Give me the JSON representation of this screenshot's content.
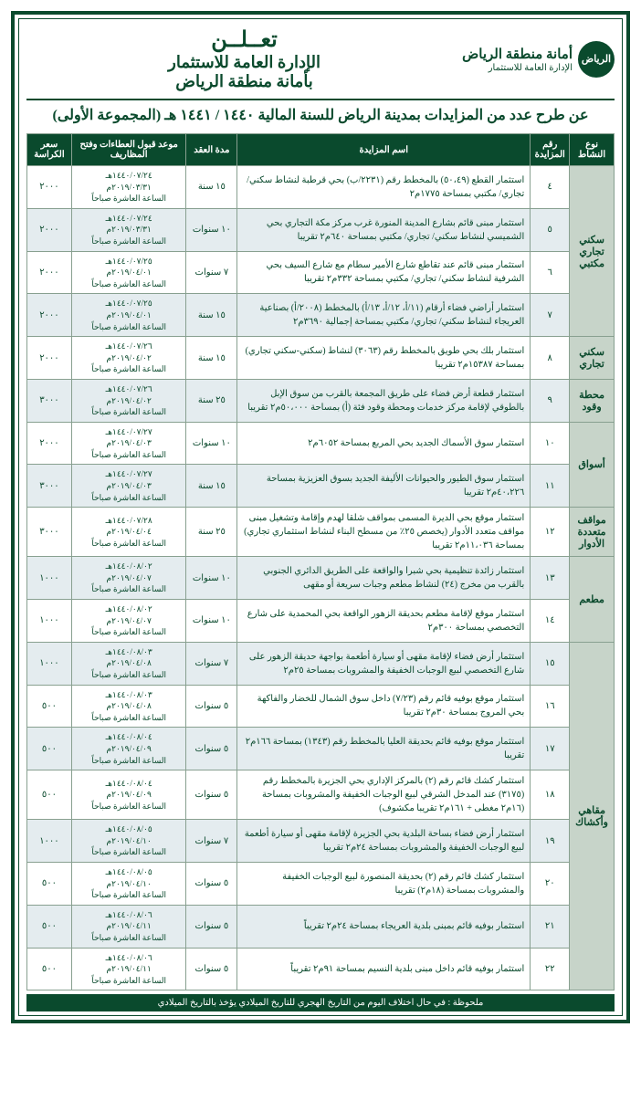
{
  "header": {
    "logo_mark": "الرياض",
    "logo_line1": "أمانة منطقة الرياض",
    "logo_line2": "الإدارة العامة للاستثمار",
    "title_line1": "تعــلــن",
    "title_line2": "الإدارة العامة للاستثمار",
    "title_line3": "بأمانة منطقة الرياض"
  },
  "subtitle": "عن طرح عدد من المزايدات بمدينة الرياض للسنة المالية ١٤٤٠ / ١٤٤١ هـ (المجموعة الأولى)",
  "columns": {
    "category": "نوع النشاط",
    "num": "رقم المزايدة",
    "name": "اسم المزايدة",
    "duration": "مدة العقد",
    "deadline": "موعد قبول العطاءات وفتح المظاريف",
    "price": "سعر الكراسة"
  },
  "categories": [
    {
      "label": "سكني تجاري مكتبي",
      "rows": [
        {
          "alt": false,
          "num": "٤",
          "desc": "استثمار القطع (٥٠،٤٩) بالمخطط رقم (٢٢٣١/ب) بحي قرطبة لنشاط سكني/ تجاري/ مكتبي بمساحة ١٧٧٥م٢",
          "duration": "١٥ سنة",
          "dead1": "١٤٤٠/٠٧/٢٤هـ",
          "dead2": "٢٠١٩/٠٣/٣١م",
          "dead3": "الساعة العاشرة صباحاً",
          "price": "٢٠٠٠"
        },
        {
          "alt": true,
          "num": "٥",
          "desc": "استثمار مبنى قائم بشارع المدينة المنورة غرب مركز مكة التجاري بحي الشميسي لنشاط سكني/ تجاري/ مكتبي بمساحة ٦٤٠م٢ تقريبا",
          "duration": "١٠ سنوات",
          "dead1": "١٤٤٠/٠٧/٢٤هـ",
          "dead2": "٢٠١٩/٠٣/٣١م",
          "dead3": "الساعة العاشرة صباحاً",
          "price": "٢٠٠٠"
        },
        {
          "alt": false,
          "num": "٦",
          "desc": "استثمار مبنى قائم عند تقاطع شارع الأمير سطام مع شارع السيف بحي الشرفية لنشاط سكني/ تجاري/ مكتبي بمساحة ٣٣٢م٢ تقريبا",
          "duration": "٧ سنوات",
          "dead1": "١٤٤٠/٠٧/٢٥هـ",
          "dead2": "٢٠١٩/٠٤/٠١م",
          "dead3": "الساعة العاشرة صباحاً",
          "price": "٢٠٠٠"
        },
        {
          "alt": true,
          "num": "٧",
          "desc": "استثمار أراضي فضاء أرقام (١١/أ، ١٢/أ، ١٣/أ) بالمخطط (٢٠٠٨/أ) بصناعية العريجاء لنشاط سكني/ تجاري/ مكتبي بمساحة إجمالية ٣٦٩٠م٢",
          "duration": "١٥ سنة",
          "dead1": "١٤٤٠/٠٧/٢٥هـ",
          "dead2": "٢٠١٩/٠٤/٠١م",
          "dead3": "الساعة العاشرة صباحاً",
          "price": "٢٠٠٠"
        }
      ]
    },
    {
      "label": "سكني تجاري",
      "rows": [
        {
          "alt": false,
          "num": "٨",
          "desc": "استثمار بلك بحي طويق بالمخطط رقم (٣٠٦٣) لنشاط (سكني-سكني تجاري) بمساحة ١٥٣٨٧م٢ تقريبا",
          "duration": "١٥ سنة",
          "dead1": "١٤٤٠/٠٧/٢٦هـ",
          "dead2": "٢٠١٩/٠٤/٠٢م",
          "dead3": "الساعة العاشرة صباحاً",
          "price": "٢٠٠٠"
        }
      ]
    },
    {
      "label": "محطة وقود",
      "rows": [
        {
          "alt": true,
          "num": "٩",
          "desc": "استثمار قطعة أرض فضاء على طريق المجمعة بالقرب من سوق الإبل بالطوقي لإقامة مركز خدمات ومحطة وقود فئة (أ) بمساحة ٥٠،٠٠٠م٢ تقريبا",
          "duration": "٢٥ سنة",
          "dead1": "١٤٤٠/٠٧/٢٦هـ",
          "dead2": "٢٠١٩/٠٤/٠٢م",
          "dead3": "الساعة العاشرة صباحاً",
          "price": "٣٠٠٠"
        }
      ]
    },
    {
      "label": "أسواق",
      "rows": [
        {
          "alt": false,
          "num": "١٠",
          "desc": "استثمار سوق الأسماك الجديد بحي المربع بمساحة ٦٠٥٢م٢",
          "duration": "١٠ سنوات",
          "dead1": "١٤٤٠/٠٧/٢٧هـ",
          "dead2": "٢٠١٩/٠٤/٠٣م",
          "dead3": "الساعة العاشرة صباحاً",
          "price": "٢٠٠٠"
        },
        {
          "alt": true,
          "num": "١١",
          "desc": "استثمار سوق الطيور والحيوانات الأليفة الجديد بسوق العزيزية بمساحة ٤٠،٢٢٦م٢ تقريبا",
          "duration": "١٥ سنة",
          "dead1": "١٤٤٠/٠٧/٢٧هـ",
          "dead2": "٢٠١٩/٠٤/٠٣م",
          "dead3": "الساعة العاشرة صباحاً",
          "price": "٣٠٠٠"
        }
      ]
    },
    {
      "label": "مواقف متعددة الأدوار",
      "rows": [
        {
          "alt": false,
          "num": "١٢",
          "desc": "استثمار موقع بحي الديرة المسمى بمواقف شلقا لهدم وإقامة وتشغيل مبنى مواقف متعدد الأدوار (يخصص ٢٥٪ من مسطح البناء لنشاط استثماري تجاري) بمساحة ١١،٠٣٦م٢ تقريبا",
          "duration": "٢٥ سنة",
          "dead1": "١٤٤٠/٠٧/٢٨هـ",
          "dead2": "٢٠١٩/٠٤/٠٤م",
          "dead3": "الساعة العاشرة صباحاً",
          "price": "٣٠٠٠"
        }
      ]
    },
    {
      "label": "مطعم",
      "rows": [
        {
          "alt": true,
          "num": "١٣",
          "desc": "استثمار زائدة تنظيمية بحي شبرا والواقعة على الطريق الدائري الجنوبي بالقرب من مخرج (٢٤) لنشاط مطعم وجبات سريعة أو مقهى",
          "duration": "١٠ سنوات",
          "dead1": "١٤٤٠/٠٨/٠٢هـ",
          "dead2": "٢٠١٩/٠٤/٠٧م",
          "dead3": "الساعة العاشرة صباحاً",
          "price": "١٠٠٠"
        },
        {
          "alt": false,
          "num": "١٤",
          "desc": "استثمار موقع لإقامة مطعم بحديقة الزهور الواقعة بحي المحمدية على شارع التخصصي بمساحة ٣٠٠م٢",
          "duration": "١٠ سنوات",
          "dead1": "١٤٤٠/٠٨/٠٢هـ",
          "dead2": "٢٠١٩/٠٤/٠٧م",
          "dead3": "الساعة العاشرة صباحاً",
          "price": "١٠٠٠"
        }
      ]
    },
    {
      "label": "مقاهي وأكشاك",
      "rows": [
        {
          "alt": true,
          "num": "١٥",
          "desc": "استثمار أرض فضاء لإقامة مقهى أو سيارة أطعمة بواجهة حديقة الزهور على شارع التخصصي لبيع الوجبات الخفيفة والمشروبات بمساحة ٢٥م٢",
          "duration": "٧ سنوات",
          "dead1": "١٤٤٠/٠٨/٠٣هـ",
          "dead2": "٢٠١٩/٠٤/٠٨م",
          "dead3": "الساعة العاشرة صباحاً",
          "price": "١٠٠٠"
        },
        {
          "alt": false,
          "num": "١٦",
          "desc": "استثمار موقع بوفيه قائم رقم (٧/٢٣) داخل سوق الشمال للخضار والفاكهة بحي المروج بمساحة ٣٠م٢ تقريبا",
          "duration": "٥ سنوات",
          "dead1": "١٤٤٠/٠٨/٠٣هـ",
          "dead2": "٢٠١٩/٠٤/٠٨م",
          "dead3": "الساعة العاشرة صباحاً",
          "price": "٥٠٠"
        },
        {
          "alt": true,
          "num": "١٧",
          "desc": "استثمار موقع بوفيه قائم بحديقة العليا بالمخطط رقم (١٣٤٣) بمساحة ١٦٦م٢ تقريبا",
          "duration": "٥ سنوات",
          "dead1": "١٤٤٠/٠٨/٠٤هـ",
          "dead2": "٢٠١٩/٠٤/٠٩م",
          "dead3": "الساعة العاشرة صباحاً",
          "price": "٥٠٠"
        },
        {
          "alt": false,
          "num": "١٨",
          "desc": "استثمار كشك قائم رقم (٢) بالمركز الإداري بحي الجزيرة بالمخطط رقم (٣١٧٥) عند المدخل الشرقي لبيع الوجبات الخفيفة والمشروبات بمساحة (١٦م٢ مغطى + ١٦١م٢ تقريبا مكشوف)",
          "duration": "٥ سنوات",
          "dead1": "١٤٤٠/٠٨/٠٤هـ",
          "dead2": "٢٠١٩/٠٤/٠٩م",
          "dead3": "الساعة العاشرة صباحاً",
          "price": "٥٠٠"
        },
        {
          "alt": true,
          "num": "١٩",
          "desc": "استثمار أرض فضاء بساحة البلدية بحي الجزيرة لإقامة مقهى أو سيارة أطعمة لبيع الوجبات الخفيفة والمشروبات بمساحة ٢٤م٢ تقريبا",
          "duration": "٧ سنوات",
          "dead1": "١٤٤٠/٠٨/٠٥هـ",
          "dead2": "٢٠١٩/٠٤/١٠م",
          "dead3": "الساعة العاشرة صباحاً",
          "price": "١٠٠٠"
        },
        {
          "alt": false,
          "num": "٢٠",
          "desc": "استثمار كشك قائم رقم (٢) بحديقة المنصورة لبيع الوجبات الخفيفة والمشروبات بمساحة (١٨م٢) تقريبا",
          "duration": "٥ سنوات",
          "dead1": "١٤٤٠/٠٨/٠٥هـ",
          "dead2": "٢٠١٩/٠٤/١٠م",
          "dead3": "الساعة العاشرة صباحاً",
          "price": "٥٠٠"
        },
        {
          "alt": true,
          "num": "٢١",
          "desc": "استثمار بوفيه قائم بمبنى بلدية العريجاء بمساحة ٢٤م٢ تقريباً",
          "duration": "٥ سنوات",
          "dead1": "١٤٤٠/٠٨/٠٦هـ",
          "dead2": "٢٠١٩/٠٤/١١م",
          "dead3": "الساعة العاشرة صباحاً",
          "price": "٥٠٠"
        },
        {
          "alt": false,
          "num": "٢٢",
          "desc": "استثمار بوفيه قائم داخل مبنى بلدية النسيم بمساحة ٩١م٢ تقريباً",
          "duration": "٥ سنوات",
          "dead1": "١٤٤٠/٠٨/٠٦هـ",
          "dead2": "٢٠١٩/٠٤/١١م",
          "dead3": "الساعة العاشرة صباحاً",
          "price": "٥٠٠"
        }
      ]
    }
  ],
  "footnote": "ملحوظة : في حال اختلاف اليوم من التاريخ الهجري للتاريخ الميلادي يؤخذ بالتاريخ الميلادي"
}
